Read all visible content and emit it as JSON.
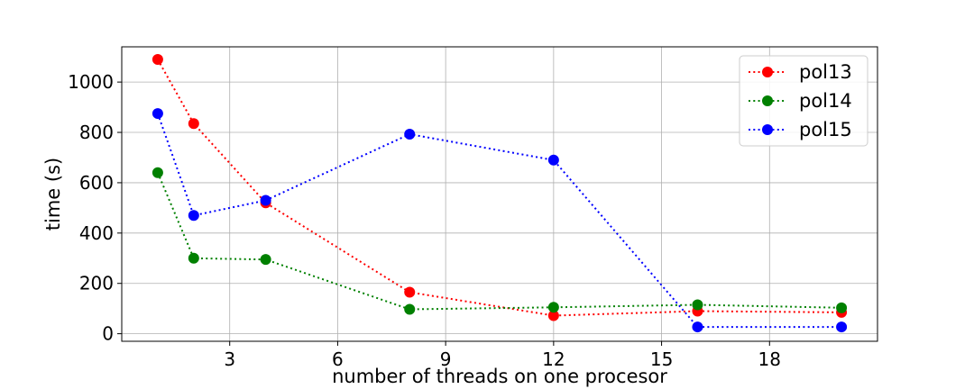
{
  "chart_data": {
    "type": "line",
    "title": "",
    "xlabel": "number of threads on one procesor",
    "ylabel": "time (s)",
    "xlim": [
      0,
      21
    ],
    "ylim": [
      -30,
      1140
    ],
    "xticks": [
      3,
      6,
      9,
      12,
      15,
      18
    ],
    "yticks": [
      0,
      200,
      400,
      600,
      800,
      1000
    ],
    "grid": true,
    "legend_position": "top-right",
    "line_style": "dotted",
    "x": [
      1,
      2,
      4,
      8,
      12,
      16,
      20
    ],
    "series": [
      {
        "name": "pol13",
        "color": "#ff0000",
        "values": [
          1090,
          835,
          520,
          165,
          72,
          90,
          85
        ]
      },
      {
        "name": "pol14",
        "color": "#008000",
        "values": [
          640,
          300,
          295,
          97,
          105,
          115,
          103
        ]
      },
      {
        "name": "pol15",
        "color": "#0000ff",
        "values": [
          875,
          470,
          530,
          793,
          690,
          27,
          27
        ]
      }
    ]
  }
}
